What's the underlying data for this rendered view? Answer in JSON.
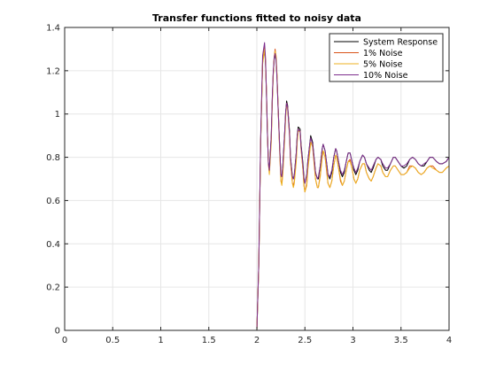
{
  "chart_data": {
    "type": "line",
    "title": "Transfer functions fitted to noisy data",
    "xlabel": "",
    "ylabel": "",
    "xlim": [
      0,
      4
    ],
    "ylim": [
      0,
      1.4
    ],
    "xticks": [
      0,
      0.5,
      1,
      1.5,
      2,
      2.5,
      3,
      3.5,
      4
    ],
    "xtick_labels": [
      "0",
      "0.5",
      "1",
      "1.5",
      "2",
      "2.5",
      "3",
      "3.5",
      "4"
    ],
    "yticks": [
      0,
      0.2,
      0.4,
      0.6,
      0.8,
      1,
      1.2,
      1.4
    ],
    "ytick_labels": [
      "0",
      "0.2",
      "0.4",
      "0.6",
      "0.8",
      "1",
      "1.2",
      "1.4"
    ],
    "grid": true,
    "legend_position": "top-right",
    "series": [
      {
        "name": "System Response",
        "color": "#000000",
        "x": [
          0,
          1.99,
          2.0,
          2.02,
          2.04,
          2.06,
          2.08,
          2.09,
          2.1,
          2.11,
          2.12,
          2.13,
          2.15,
          2.16,
          2.17,
          2.18,
          2.19,
          2.2,
          2.21,
          2.22,
          2.24,
          2.25,
          2.26,
          2.27,
          2.29,
          2.3,
          2.31,
          2.32,
          2.34,
          2.35,
          2.37,
          2.38,
          2.39,
          2.41,
          2.42,
          2.43,
          2.45,
          2.46,
          2.48,
          2.49,
          2.5,
          2.52,
          2.53,
          2.55,
          2.56,
          2.58,
          2.6,
          2.61,
          2.63,
          2.64,
          2.66,
          2.68,
          2.69,
          2.71,
          2.73,
          2.74,
          2.76,
          2.78,
          2.8,
          2.82,
          2.83,
          2.85,
          2.87,
          2.89,
          2.91,
          2.93,
          2.95,
          2.97,
          2.99,
          3.01,
          3.03,
          3.05,
          3.07,
          3.1,
          3.12,
          3.14,
          3.17,
          3.19,
          3.21,
          3.24,
          3.26,
          3.29,
          3.31,
          3.34,
          3.36,
          3.39,
          3.42,
          3.44,
          3.47,
          3.5,
          3.53,
          3.56,
          3.59,
          3.62,
          3.65,
          3.68,
          3.71,
          3.74,
          3.77,
          3.8,
          3.83,
          3.87,
          3.9,
          3.93,
          3.97,
          4.0
        ],
        "y": [
          0,
          0,
          0.0,
          0.3,
          0.88,
          1.24,
          1.3,
          1.24,
          1.09,
          0.91,
          0.78,
          0.74,
          0.9,
          1.06,
          1.18,
          1.25,
          1.28,
          1.25,
          1.17,
          1.05,
          0.82,
          0.72,
          0.71,
          0.76,
          0.92,
          1.01,
          1.06,
          1.04,
          0.92,
          0.8,
          0.71,
          0.7,
          0.72,
          0.82,
          0.9,
          0.94,
          0.93,
          0.86,
          0.77,
          0.7,
          0.68,
          0.72,
          0.78,
          0.86,
          0.9,
          0.87,
          0.78,
          0.73,
          0.7,
          0.7,
          0.76,
          0.84,
          0.86,
          0.83,
          0.76,
          0.72,
          0.7,
          0.73,
          0.8,
          0.84,
          0.83,
          0.78,
          0.73,
          0.71,
          0.73,
          0.78,
          0.82,
          0.82,
          0.78,
          0.74,
          0.72,
          0.74,
          0.78,
          0.81,
          0.8,
          0.77,
          0.74,
          0.73,
          0.75,
          0.79,
          0.8,
          0.79,
          0.76,
          0.74,
          0.74,
          0.77,
          0.8,
          0.8,
          0.78,
          0.76,
          0.75,
          0.76,
          0.79,
          0.8,
          0.79,
          0.77,
          0.76,
          0.76,
          0.78,
          0.8,
          0.8,
          0.78,
          0.77,
          0.77,
          0.78,
          0.8
        ]
      },
      {
        "name": "1% Noise",
        "color": "#d95319",
        "x": [
          0,
          1.99,
          2.0,
          2.02,
          2.04,
          2.06,
          2.08,
          2.09,
          2.1,
          2.11,
          2.12,
          2.13,
          2.15,
          2.16,
          2.17,
          2.18,
          2.19,
          2.2,
          2.21,
          2.22,
          2.24,
          2.25,
          2.26,
          2.27,
          2.29,
          2.3,
          2.31,
          2.32,
          2.34,
          2.35,
          2.37,
          2.38,
          2.39,
          2.41,
          2.42,
          2.43,
          2.45,
          2.46,
          2.48,
          2.49,
          2.5,
          2.52,
          2.53,
          2.55,
          2.56,
          2.58,
          2.6,
          2.61,
          2.63,
          2.64,
          2.66,
          2.68,
          2.69,
          2.71,
          2.73,
          2.74,
          2.76,
          2.78,
          2.8,
          2.82,
          2.83,
          2.85,
          2.87,
          2.89,
          2.91,
          2.93,
          2.95,
          2.97,
          2.99,
          3.01,
          3.03,
          3.05,
          3.07,
          3.1,
          3.12,
          3.14,
          3.17,
          3.19,
          3.21,
          3.24,
          3.26,
          3.29,
          3.31,
          3.34,
          3.36,
          3.39,
          3.42,
          3.44,
          3.47,
          3.5,
          3.53,
          3.56,
          3.59,
          3.62,
          3.65,
          3.68,
          3.71,
          3.74,
          3.77,
          3.8,
          3.83,
          3.87,
          3.9,
          3.93,
          3.97,
          4.0
        ],
        "y": [
          0,
          0,
          0.0,
          0.3,
          0.88,
          1.24,
          1.31,
          1.25,
          1.1,
          0.92,
          0.77,
          0.73,
          0.88,
          1.05,
          1.18,
          1.26,
          1.3,
          1.26,
          1.17,
          1.04,
          0.8,
          0.69,
          0.68,
          0.73,
          0.9,
          1.0,
          1.05,
          1.03,
          0.9,
          0.78,
          0.68,
          0.67,
          0.69,
          0.79,
          0.88,
          0.93,
          0.92,
          0.84,
          0.74,
          0.67,
          0.64,
          0.68,
          0.75,
          0.83,
          0.87,
          0.85,
          0.75,
          0.7,
          0.66,
          0.66,
          0.72,
          0.8,
          0.83,
          0.8,
          0.72,
          0.68,
          0.66,
          0.69,
          0.76,
          0.81,
          0.8,
          0.75,
          0.69,
          0.67,
          0.69,
          0.74,
          0.78,
          0.79,
          0.75,
          0.7,
          0.68,
          0.7,
          0.74,
          0.77,
          0.77,
          0.73,
          0.7,
          0.69,
          0.71,
          0.75,
          0.77,
          0.76,
          0.73,
          0.71,
          0.71,
          0.74,
          0.76,
          0.76,
          0.74,
          0.72,
          0.72,
          0.73,
          0.76,
          0.76,
          0.75,
          0.73,
          0.72,
          0.73,
          0.75,
          0.76,
          0.76,
          0.74,
          0.73,
          0.73,
          0.75,
          0.76
        ]
      },
      {
        "name": "5% Noise",
        "color": "#edb120",
        "x": [
          0,
          1.99,
          2.0,
          2.02,
          2.04,
          2.06,
          2.08,
          2.09,
          2.1,
          2.11,
          2.12,
          2.13,
          2.15,
          2.16,
          2.17,
          2.18,
          2.19,
          2.2,
          2.21,
          2.22,
          2.24,
          2.25,
          2.26,
          2.27,
          2.29,
          2.3,
          2.31,
          2.32,
          2.34,
          2.35,
          2.37,
          2.38,
          2.39,
          2.41,
          2.42,
          2.43,
          2.45,
          2.46,
          2.48,
          2.49,
          2.5,
          2.52,
          2.53,
          2.55,
          2.56,
          2.58,
          2.6,
          2.61,
          2.63,
          2.64,
          2.66,
          2.68,
          2.69,
          2.71,
          2.73,
          2.74,
          2.76,
          2.78,
          2.8,
          2.82,
          2.83,
          2.85,
          2.87,
          2.89,
          2.91,
          2.93,
          2.95,
          2.97,
          2.99,
          3.01,
          3.03,
          3.05,
          3.07,
          3.1,
          3.12,
          3.14,
          3.17,
          3.19,
          3.21,
          3.24,
          3.26,
          3.29,
          3.31,
          3.34,
          3.36,
          3.39,
          3.42,
          3.44,
          3.47,
          3.5,
          3.53,
          3.56,
          3.59,
          3.62,
          3.65,
          3.68,
          3.71,
          3.74,
          3.77,
          3.8,
          3.83,
          3.87,
          3.9,
          3.93,
          3.97,
          4.0
        ],
        "y": [
          0,
          0,
          0.0,
          0.3,
          0.87,
          1.23,
          1.3,
          1.24,
          1.1,
          0.92,
          0.77,
          0.72,
          0.87,
          1.04,
          1.17,
          1.26,
          1.29,
          1.27,
          1.18,
          1.05,
          0.8,
          0.69,
          0.67,
          0.72,
          0.89,
          0.99,
          1.04,
          1.03,
          0.9,
          0.78,
          0.68,
          0.66,
          0.68,
          0.78,
          0.87,
          0.92,
          0.92,
          0.84,
          0.74,
          0.67,
          0.64,
          0.67,
          0.74,
          0.82,
          0.87,
          0.85,
          0.76,
          0.7,
          0.66,
          0.66,
          0.71,
          0.8,
          0.83,
          0.8,
          0.73,
          0.68,
          0.66,
          0.69,
          0.76,
          0.81,
          0.8,
          0.75,
          0.7,
          0.67,
          0.69,
          0.74,
          0.78,
          0.78,
          0.75,
          0.7,
          0.68,
          0.7,
          0.74,
          0.77,
          0.77,
          0.73,
          0.7,
          0.69,
          0.71,
          0.75,
          0.77,
          0.76,
          0.73,
          0.71,
          0.71,
          0.74,
          0.76,
          0.76,
          0.74,
          0.72,
          0.72,
          0.73,
          0.75,
          0.76,
          0.75,
          0.73,
          0.72,
          0.73,
          0.75,
          0.76,
          0.75,
          0.74,
          0.73,
          0.73,
          0.75,
          0.76
        ]
      },
      {
        "name": "10% Noise",
        "color": "#7e2f8e",
        "x": [
          0,
          1.99,
          2.0,
          2.02,
          2.04,
          2.06,
          2.08,
          2.09,
          2.1,
          2.11,
          2.12,
          2.13,
          2.15,
          2.16,
          2.17,
          2.18,
          2.19,
          2.2,
          2.21,
          2.22,
          2.24,
          2.25,
          2.26,
          2.27,
          2.29,
          2.3,
          2.31,
          2.32,
          2.34,
          2.35,
          2.37,
          2.38,
          2.39,
          2.41,
          2.42,
          2.43,
          2.45,
          2.46,
          2.48,
          2.49,
          2.5,
          2.52,
          2.53,
          2.55,
          2.56,
          2.58,
          2.6,
          2.61,
          2.63,
          2.64,
          2.66,
          2.68,
          2.69,
          2.71,
          2.73,
          2.74,
          2.76,
          2.78,
          2.8,
          2.82,
          2.83,
          2.85,
          2.87,
          2.89,
          2.91,
          2.93,
          2.95,
          2.97,
          2.99,
          3.01,
          3.03,
          3.05,
          3.07,
          3.1,
          3.12,
          3.14,
          3.17,
          3.19,
          3.21,
          3.24,
          3.26,
          3.29,
          3.31,
          3.34,
          3.36,
          3.39,
          3.42,
          3.44,
          3.47,
          3.5,
          3.53,
          3.56,
          3.59,
          3.62,
          3.65,
          3.68,
          3.71,
          3.74,
          3.77,
          3.8,
          3.83,
          3.87,
          3.9,
          3.93,
          3.97,
          4.0
        ],
        "y": [
          0,
          0,
          0.0,
          0.31,
          0.9,
          1.27,
          1.33,
          1.26,
          1.1,
          0.91,
          0.77,
          0.74,
          0.9,
          1.07,
          1.19,
          1.26,
          1.28,
          1.25,
          1.16,
          1.04,
          0.82,
          0.72,
          0.71,
          0.76,
          0.92,
          1.01,
          1.05,
          1.03,
          0.91,
          0.8,
          0.71,
          0.7,
          0.72,
          0.82,
          0.9,
          0.93,
          0.92,
          0.85,
          0.76,
          0.7,
          0.68,
          0.72,
          0.78,
          0.86,
          0.89,
          0.86,
          0.78,
          0.73,
          0.7,
          0.71,
          0.76,
          0.84,
          0.86,
          0.83,
          0.76,
          0.72,
          0.71,
          0.74,
          0.8,
          0.84,
          0.83,
          0.78,
          0.74,
          0.72,
          0.74,
          0.78,
          0.82,
          0.82,
          0.78,
          0.75,
          0.73,
          0.75,
          0.78,
          0.81,
          0.8,
          0.77,
          0.75,
          0.74,
          0.76,
          0.79,
          0.8,
          0.79,
          0.77,
          0.75,
          0.75,
          0.77,
          0.8,
          0.8,
          0.78,
          0.76,
          0.76,
          0.77,
          0.79,
          0.8,
          0.79,
          0.77,
          0.76,
          0.77,
          0.78,
          0.8,
          0.8,
          0.78,
          0.77,
          0.77,
          0.78,
          0.8
        ]
      }
    ]
  }
}
